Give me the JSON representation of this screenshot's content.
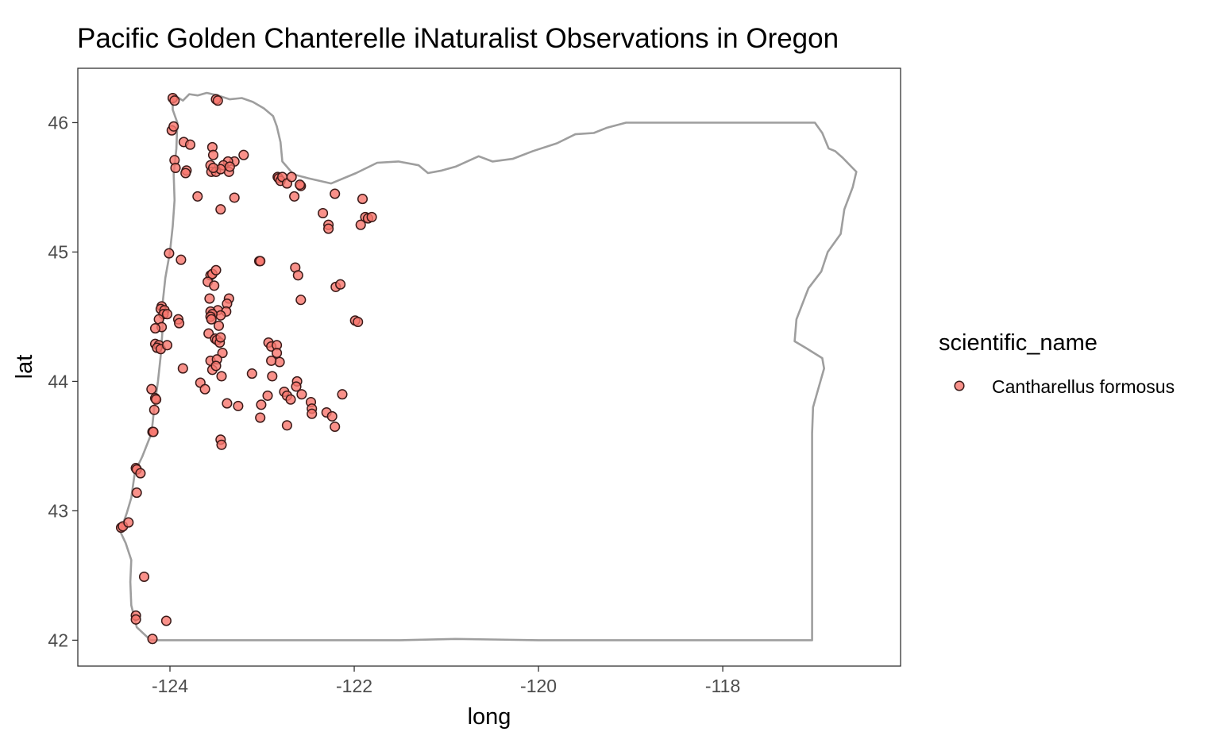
{
  "chart_data": {
    "type": "scatter",
    "title": "Pacific Golden Chanterelle iNaturalist Observations in Oregon",
    "xlabel": "long",
    "ylabel": "lat",
    "xlim": [
      -125.0,
      -116.07
    ],
    "ylim": [
      41.8,
      46.42
    ],
    "x_ticks": [
      -124,
      -122,
      -120,
      -118
    ],
    "y_ticks": [
      42,
      43,
      44,
      45,
      46
    ],
    "x_tick_labels": [
      "-124",
      "-122",
      "-120",
      "-118"
    ],
    "y_tick_labels": [
      "42",
      "43",
      "44",
      "45",
      "46"
    ],
    "grid": false,
    "legend": {
      "title": "scientific_name",
      "position": "right",
      "entries": [
        "Cantharellus formosus"
      ]
    },
    "colors": {
      "point_fill": "#f8766d",
      "point_stroke": "#3a1a18",
      "outline": "#9e9e9e",
      "panel_border": "#333333"
    },
    "outline": [
      [
        -123.97,
        46.22
      ],
      [
        -123.86,
        46.17
      ],
      [
        -123.79,
        46.22
      ],
      [
        -123.7,
        46.21
      ],
      [
        -123.6,
        46.23
      ],
      [
        -123.48,
        46.21
      ],
      [
        -123.35,
        46.18
      ],
      [
        -123.22,
        46.19
      ],
      [
        -123.1,
        46.16
      ],
      [
        -122.98,
        46.11
      ],
      [
        -122.88,
        46.05
      ],
      [
        -122.84,
        45.97
      ],
      [
        -122.8,
        45.85
      ],
      [
        -122.78,
        45.7
      ],
      [
        -122.66,
        45.6
      ],
      [
        -122.5,
        45.57
      ],
      [
        -122.25,
        45.53
      ],
      [
        -121.98,
        45.61
      ],
      [
        -121.75,
        45.69
      ],
      [
        -121.52,
        45.7
      ],
      [
        -121.3,
        45.67
      ],
      [
        -121.2,
        45.61
      ],
      [
        -121.05,
        45.63
      ],
      [
        -120.9,
        45.66
      ],
      [
        -120.65,
        45.74
      ],
      [
        -120.5,
        45.7
      ],
      [
        -120.28,
        45.72
      ],
      [
        -120.06,
        45.78
      ],
      [
        -119.8,
        45.84
      ],
      [
        -119.6,
        45.91
      ],
      [
        -119.4,
        45.92
      ],
      [
        -119.26,
        45.96
      ],
      [
        -119.05,
        46.0
      ],
      [
        -118.5,
        46.0
      ],
      [
        -117.98,
        46.0
      ],
      [
        -117.6,
        46.0
      ],
      [
        -117.0,
        46.0
      ],
      [
        -116.92,
        45.92
      ],
      [
        -116.85,
        45.8
      ],
      [
        -116.78,
        45.78
      ],
      [
        -116.7,
        45.73
      ],
      [
        -116.55,
        45.62
      ],
      [
        -116.59,
        45.5
      ],
      [
        -116.68,
        45.33
      ],
      [
        -116.72,
        45.14
      ],
      [
        -116.86,
        45.0
      ],
      [
        -116.93,
        44.85
      ],
      [
        -117.07,
        44.72
      ],
      [
        -117.2,
        44.48
      ],
      [
        -117.22,
        44.31
      ],
      [
        -117.1,
        44.26
      ],
      [
        -116.92,
        44.18
      ],
      [
        -116.9,
        44.1
      ],
      [
        -116.98,
        43.9
      ],
      [
        -117.02,
        43.8
      ],
      [
        -117.03,
        43.6
      ],
      [
        -117.03,
        43.0
      ],
      [
        -117.03,
        42.6
      ],
      [
        -117.03,
        42.0
      ],
      [
        -118.0,
        42.0
      ],
      [
        -119.0,
        42.0
      ],
      [
        -120.0,
        42.0
      ],
      [
        -120.9,
        42.01
      ],
      [
        -121.5,
        42.0
      ],
      [
        -122.5,
        42.0
      ],
      [
        -123.5,
        42.0
      ],
      [
        -124.21,
        42.0
      ],
      [
        -124.36,
        42.1
      ],
      [
        -124.42,
        42.27
      ],
      [
        -124.43,
        42.45
      ],
      [
        -124.42,
        42.62
      ],
      [
        -124.48,
        42.75
      ],
      [
        -124.54,
        42.84
      ],
      [
        -124.47,
        42.98
      ],
      [
        -124.42,
        43.1
      ],
      [
        -124.38,
        43.3
      ],
      [
        -124.3,
        43.42
      ],
      [
        -124.2,
        43.6
      ],
      [
        -124.17,
        43.8
      ],
      [
        -124.13,
        44.0
      ],
      [
        -124.1,
        44.2
      ],
      [
        -124.08,
        44.4
      ],
      [
        -124.08,
        44.6
      ],
      [
        -124.05,
        44.8
      ],
      [
        -124.0,
        45.0
      ],
      [
        -123.97,
        45.2
      ],
      [
        -123.95,
        45.4
      ],
      [
        -123.96,
        45.6
      ],
      [
        -123.93,
        45.8
      ],
      [
        -123.92,
        46.0
      ],
      [
        -123.97,
        46.1
      ],
      [
        -123.97,
        46.22
      ]
    ],
    "points": [
      [
        -123.97,
        46.19
      ],
      [
        -123.95,
        46.17
      ],
      [
        -123.5,
        46.18
      ],
      [
        -123.48,
        46.17
      ],
      [
        -123.98,
        45.94
      ],
      [
        -123.96,
        45.97
      ],
      [
        -123.85,
        45.85
      ],
      [
        -123.78,
        45.83
      ],
      [
        -123.54,
        45.81
      ],
      [
        -123.53,
        45.75
      ],
      [
        -123.2,
        45.75
      ],
      [
        -123.3,
        45.7
      ],
      [
        -123.37,
        45.7
      ],
      [
        -123.42,
        45.67
      ],
      [
        -123.56,
        45.67
      ],
      [
        -123.55,
        45.62
      ],
      [
        -123.5,
        45.62
      ],
      [
        -123.36,
        45.62
      ],
      [
        -123.35,
        45.66
      ],
      [
        -123.45,
        45.64
      ],
      [
        -123.53,
        45.65
      ],
      [
        -123.95,
        45.71
      ],
      [
        -123.94,
        45.65
      ],
      [
        -123.82,
        45.63
      ],
      [
        -123.83,
        45.61
      ],
      [
        -123.7,
        45.43
      ],
      [
        -123.3,
        45.42
      ],
      [
        -123.45,
        45.33
      ],
      [
        -122.83,
        45.58
      ],
      [
        -122.82,
        45.57
      ],
      [
        -122.8,
        45.55
      ],
      [
        -122.78,
        45.58
      ],
      [
        -122.73,
        45.53
      ],
      [
        -122.68,
        45.58
      ],
      [
        -122.58,
        45.51
      ],
      [
        -122.59,
        45.52
      ],
      [
        -122.65,
        45.43
      ],
      [
        -122.21,
        45.45
      ],
      [
        -122.34,
        45.3
      ],
      [
        -122.28,
        45.21
      ],
      [
        -122.28,
        45.18
      ],
      [
        -121.91,
        45.41
      ],
      [
        -121.88,
        45.27
      ],
      [
        -121.85,
        45.26
      ],
      [
        -121.81,
        45.27
      ],
      [
        -121.93,
        45.21
      ],
      [
        -124.01,
        44.99
      ],
      [
        -123.88,
        44.94
      ],
      [
        -123.03,
        44.93
      ],
      [
        -123.02,
        44.93
      ],
      [
        -122.64,
        44.88
      ],
      [
        -122.61,
        44.82
      ],
      [
        -122.58,
        44.63
      ],
      [
        -122.2,
        44.73
      ],
      [
        -122.15,
        44.75
      ],
      [
        -121.99,
        44.47
      ],
      [
        -121.96,
        44.46
      ],
      [
        -123.56,
        44.82
      ],
      [
        -123.54,
        44.83
      ],
      [
        -123.5,
        44.86
      ],
      [
        -123.59,
        44.77
      ],
      [
        -123.52,
        44.74
      ],
      [
        -123.36,
        44.64
      ],
      [
        -123.57,
        44.64
      ],
      [
        -123.38,
        44.6
      ],
      [
        -123.48,
        44.55
      ],
      [
        -123.39,
        44.54
      ],
      [
        -123.45,
        44.51
      ],
      [
        -123.56,
        44.54
      ],
      [
        -123.54,
        44.52
      ],
      [
        -123.56,
        44.5
      ],
      [
        -123.55,
        44.48
      ],
      [
        -123.47,
        44.43
      ],
      [
        -123.58,
        44.37
      ],
      [
        -123.51,
        44.33
      ],
      [
        -123.49,
        44.32
      ],
      [
        -123.46,
        44.3
      ],
      [
        -123.43,
        44.22
      ],
      [
        -123.45,
        44.34
      ],
      [
        -123.56,
        44.16
      ],
      [
        -123.49,
        44.17
      ],
      [
        -123.54,
        44.09
      ],
      [
        -123.5,
        44.12
      ],
      [
        -123.44,
        44.04
      ],
      [
        -123.67,
        43.99
      ],
      [
        -123.62,
        43.94
      ],
      [
        -123.38,
        43.83
      ],
      [
        -123.26,
        43.81
      ],
      [
        -123.45,
        43.55
      ],
      [
        -123.44,
        43.51
      ],
      [
        -124.09,
        44.58
      ],
      [
        -124.1,
        44.56
      ],
      [
        -124.06,
        44.55
      ],
      [
        -124.07,
        44.52
      ],
      [
        -124.03,
        44.52
      ],
      [
        -124.12,
        44.48
      ],
      [
        -124.09,
        44.42
      ],
      [
        -124.16,
        44.41
      ],
      [
        -123.91,
        44.48
      ],
      [
        -123.9,
        44.45
      ],
      [
        -124.16,
        44.29
      ],
      [
        -124.12,
        44.28
      ],
      [
        -124.14,
        44.26
      ],
      [
        -124.1,
        44.25
      ],
      [
        -124.03,
        44.28
      ],
      [
        -123.86,
        44.1
      ],
      [
        -124.2,
        43.94
      ],
      [
        -124.16,
        43.87
      ],
      [
        -124.15,
        43.86
      ],
      [
        -124.17,
        43.78
      ],
      [
        -124.19,
        43.61
      ],
      [
        -124.18,
        43.61
      ],
      [
        -124.37,
        43.33
      ],
      [
        -124.36,
        43.32
      ],
      [
        -124.32,
        43.29
      ],
      [
        -124.36,
        43.14
      ],
      [
        -124.53,
        42.87
      ],
      [
        -124.51,
        42.88
      ],
      [
        -124.45,
        42.91
      ],
      [
        -124.28,
        42.49
      ],
      [
        -124.37,
        42.19
      ],
      [
        -124.37,
        42.16
      ],
      [
        -124.04,
        42.15
      ],
      [
        -124.19,
        42.01
      ],
      [
        -123.11,
        44.06
      ],
      [
        -123.01,
        43.82
      ],
      [
        -123.02,
        43.72
      ],
      [
        -122.93,
        44.3
      ],
      [
        -122.9,
        44.27
      ],
      [
        -122.84,
        44.28
      ],
      [
        -122.84,
        44.22
      ],
      [
        -122.81,
        44.15
      ],
      [
        -122.9,
        44.16
      ],
      [
        -122.89,
        44.04
      ],
      [
        -122.94,
        43.89
      ],
      [
        -122.76,
        43.92
      ],
      [
        -122.73,
        43.89
      ],
      [
        -122.69,
        43.86
      ],
      [
        -122.73,
        43.66
      ],
      [
        -122.62,
        44.0
      ],
      [
        -122.63,
        43.96
      ],
      [
        -122.57,
        43.9
      ],
      [
        -122.47,
        43.84
      ],
      [
        -122.46,
        43.79
      ],
      [
        -122.46,
        43.75
      ],
      [
        -122.3,
        43.76
      ],
      [
        -122.24,
        43.73
      ],
      [
        -122.21,
        43.65
      ],
      [
        -122.13,
        43.9
      ]
    ]
  }
}
